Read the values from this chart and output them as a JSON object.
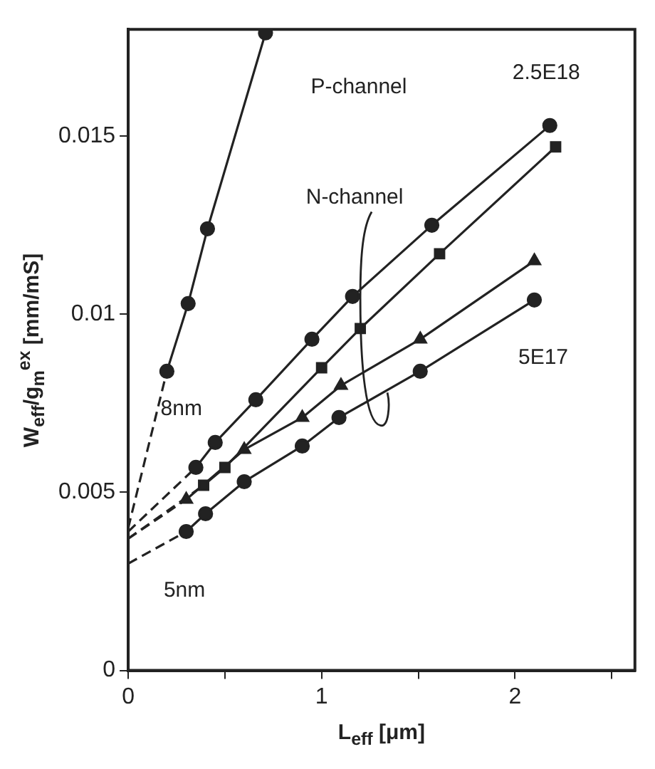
{
  "chart_data": {
    "type": "line",
    "xlabel": "L$_{eff}$ [μm]",
    "ylabel": "W$_{eff}$/g$_{m}$$^{ex}$ [mm/mS]",
    "xlim": [
      0,
      2.62
    ],
    "ylim": [
      0,
      0.018
    ],
    "xticks": [
      0,
      {
        "value": 0.5,
        "label": null
      },
      1,
      {
        "value": 1.5,
        "label": null
      },
      2,
      {
        "value": 2.5,
        "label": null
      }
    ],
    "yticks": [
      0,
      0.005,
      0.01,
      0.015
    ],
    "grid": false,
    "legend": false,
    "series": [
      {
        "color": "#222222",
        "marker": "circle",
        "line_style": "solid",
        "x": [
          0.2,
          0.31,
          0.41,
          0.71
        ],
        "values": [
          0.0084,
          0.0103,
          0.0124,
          0.0179
        ]
      },
      {
        "color": "#222222",
        "marker": "none",
        "line_style": "dashed",
        "x": [
          0,
          0.2
        ],
        "values": [
          0.004,
          0.0084
        ]
      },
      {
        "color": "#222222",
        "marker": "circle",
        "line_style": "solid",
        "x": [
          0.35,
          0.45,
          0.66,
          0.95,
          1.16,
          1.57,
          2.18
        ],
        "values": [
          0.0057,
          0.0064,
          0.0076,
          0.0093,
          0.0105,
          0.0125,
          0.0153
        ]
      },
      {
        "color": "#222222",
        "marker": "none",
        "line_style": "dashed",
        "x": [
          0,
          0.35
        ],
        "values": [
          0.0039,
          0.0057
        ]
      },
      {
        "color": "#222222",
        "marker": "square",
        "line_style": "solid",
        "x": [
          0.39,
          0.5,
          1.0,
          1.2,
          1.61,
          2.21
        ],
        "values": [
          0.0052,
          0.0057,
          0.0085,
          0.0096,
          0.0117,
          0.0147
        ]
      },
      {
        "color": "#222222",
        "marker": "none",
        "line_style": "dashed",
        "x": [
          0,
          0.39
        ],
        "values": [
          0.0037,
          0.0052
        ]
      },
      {
        "color": "#222222",
        "marker": "triangle",
        "line_style": "solid",
        "x": [
          0.3,
          0.6,
          0.9,
          1.1,
          1.51,
          2.1
        ],
        "values": [
          0.0048,
          0.0062,
          0.0071,
          0.008,
          0.0093,
          0.0115
        ]
      },
      {
        "color": "#222222",
        "marker": "none",
        "line_style": "dashed",
        "x": [
          0,
          0.3
        ],
        "values": [
          0.0037,
          0.0048
        ]
      },
      {
        "color": "#222222",
        "marker": "circle",
        "line_style": "solid",
        "x": [
          0.3,
          0.4,
          0.6,
          0.9,
          1.09,
          1.51,
          2.1
        ],
        "values": [
          0.0039,
          0.0044,
          0.0053,
          0.0063,
          0.0071,
          0.0084,
          0.0104
        ]
      },
      {
        "color": "#222222",
        "marker": "none",
        "line_style": "dashed",
        "x": [
          0,
          0.3
        ],
        "values": [
          0.003,
          0.0039
        ]
      }
    ],
    "annotations": [
      "P-channel",
      {
        "text": "N-channel",
        "x": 1.34,
        "y": 0.0078
      },
      "2.5E18",
      "5E17",
      "8nm",
      "5nm"
    ]
  }
}
